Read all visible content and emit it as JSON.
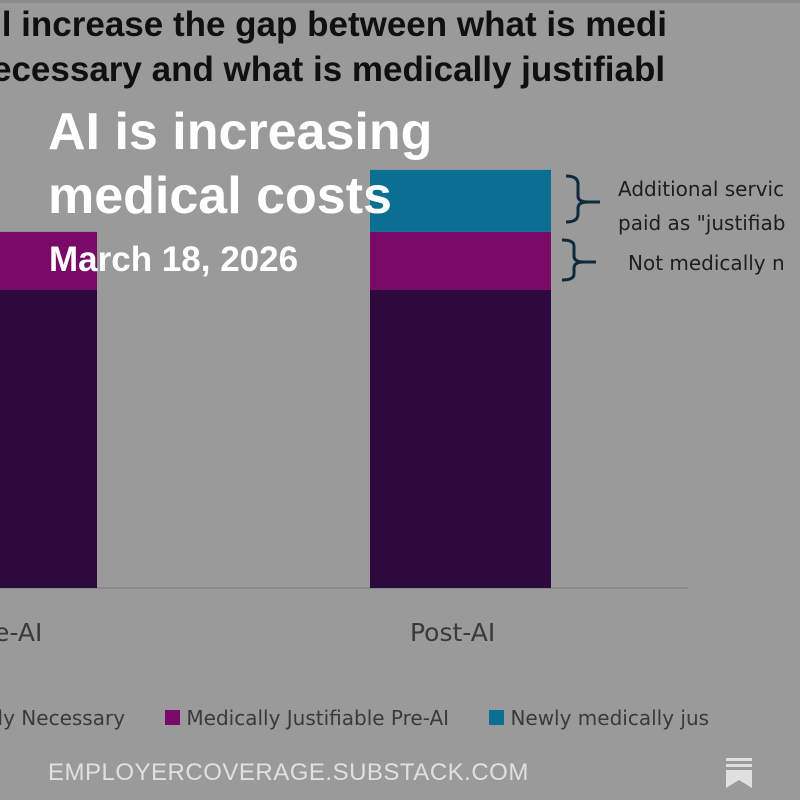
{
  "card": {
    "title": "AI is increasing medical costs",
    "date": "March 18, 2026",
    "site": "EMPLOYERCOVERAGE.SUBSTACK.COM",
    "icon": "substack-bookmark-icon"
  },
  "background_chart": {
    "title_lines": [
      "ll increase the gap between what is medi",
      "ecessary and what is medically justifiabl"
    ],
    "annotations": [
      "Additional servic",
      "paid as \"justifiab",
      "Not medically n"
    ]
  },
  "chart_data": {
    "type": "bar",
    "stacked": true,
    "categories": [
      "e-AI",
      "Post-AI"
    ],
    "series": [
      {
        "name": "lly Necessary",
        "values": [
          100,
          100
        ],
        "color": "#2c0a3e"
      },
      {
        "name": "Medically Justifiable Pre-AI",
        "values": [
          19.5,
          19.5
        ],
        "color": "#7a0a68"
      },
      {
        "name": "Newly medically jus",
        "values": [
          0,
          20.8
        ],
        "color": "#0b6f93"
      }
    ],
    "ylim": [
      0,
      140
    ],
    "grid": false,
    "legend": "bottom"
  }
}
